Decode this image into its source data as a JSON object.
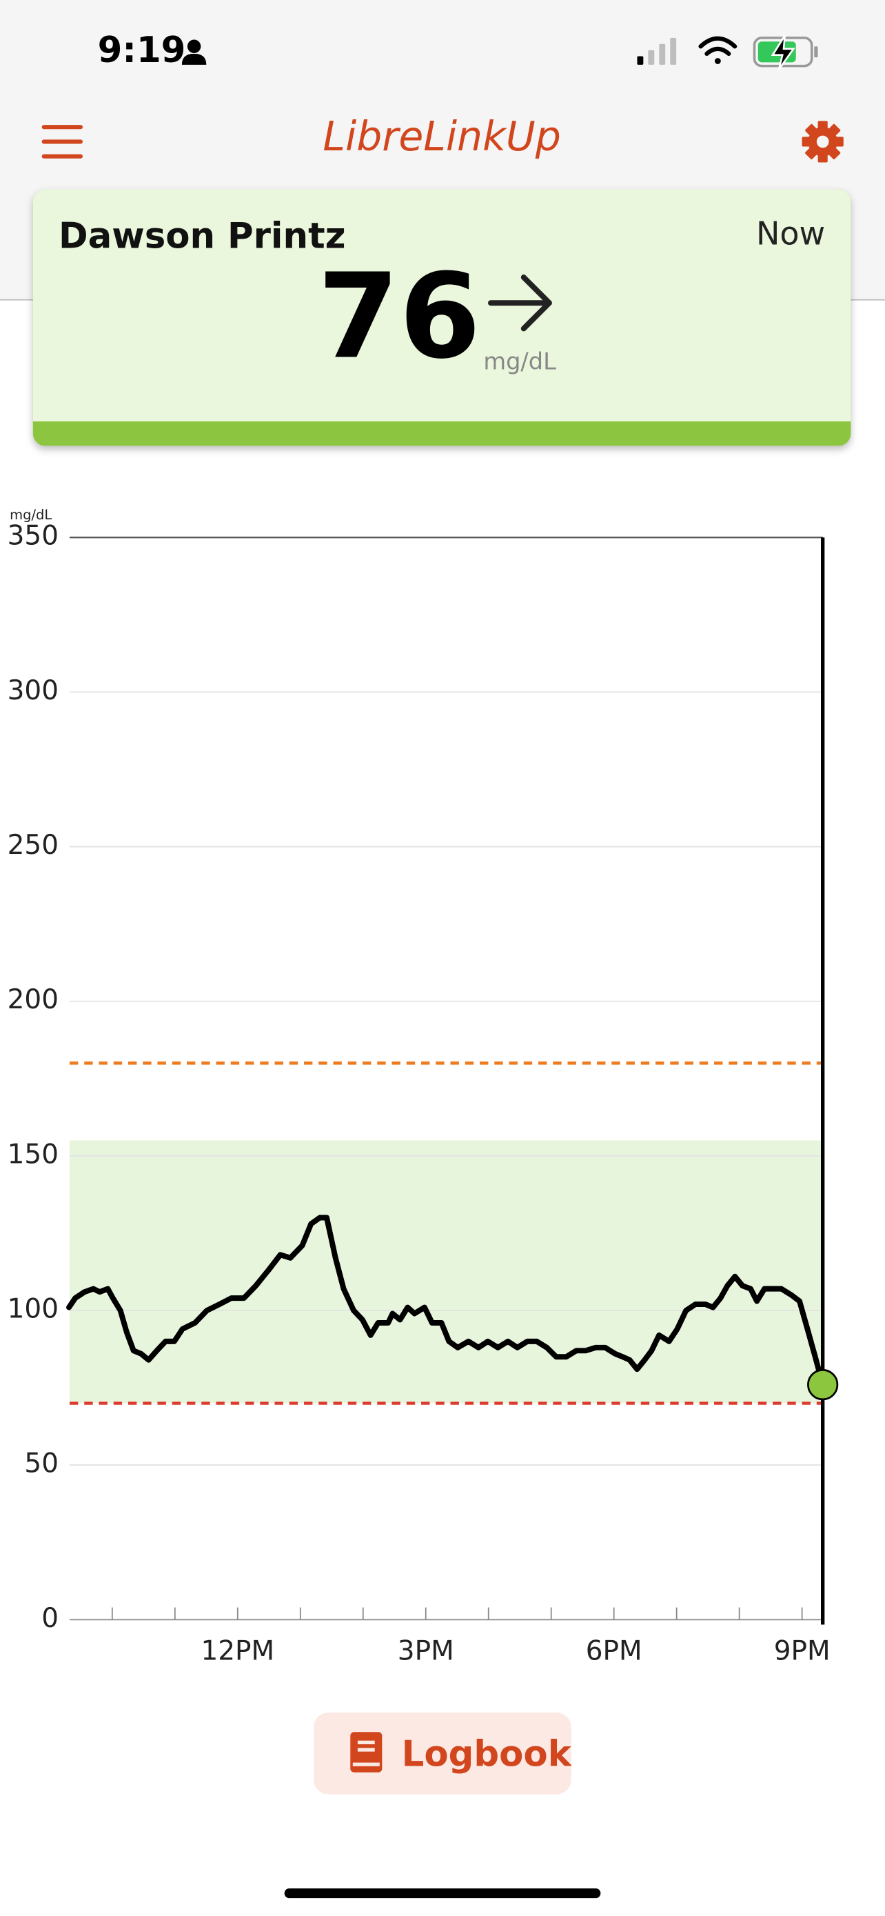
{
  "status_bar": {
    "time": "9:19"
  },
  "header": {
    "title": "LibreLinkUp"
  },
  "reading": {
    "name": "Dawson Printz",
    "timestamp": "Now",
    "value": 76,
    "unit": "mg/dL"
  },
  "chart_data": {
    "type": "line",
    "y_unit_label": "mg/dL",
    "x": [
      9.31,
      9.41,
      9.56,
      9.7,
      9.8,
      9.93,
      10.01,
      10.13,
      10.23,
      10.34,
      10.46,
      10.58,
      10.71,
      10.85,
      10.99,
      11.12,
      11.32,
      11.51,
      11.71,
      11.9,
      12.1,
      12.29,
      12.49,
      12.68,
      12.84,
      13.03,
      13.17,
      13.31,
      13.42,
      13.56,
      13.69,
      13.85,
      13.99,
      14.12,
      14.24,
      14.4,
      14.47,
      14.59,
      14.71,
      14.82,
      14.98,
      15.1,
      15.25,
      15.37,
      15.51,
      15.68,
      15.84,
      15.99,
      16.15,
      16.31,
      16.46,
      16.62,
      16.77,
      16.93,
      17.08,
      17.24,
      17.4,
      17.55,
      17.71,
      17.86,
      18.02,
      18.14,
      18.25,
      18.37,
      18.49,
      18.6,
      18.72,
      18.88,
      19.01,
      19.15,
      19.3,
      19.46,
      19.58,
      19.7,
      19.81,
      19.93,
      20.05,
      20.18,
      20.28,
      20.4,
      20.55,
      20.67,
      20.83,
      20.96,
      21.1,
      21.21,
      21.33
    ],
    "series": [
      {
        "color": "#000000",
        "values": [
          101,
          104,
          106,
          107,
          106,
          107,
          104,
          100,
          93,
          87,
          86,
          84,
          87,
          90,
          90,
          94,
          96,
          100,
          102,
          104,
          104,
          108,
          113,
          118,
          117,
          121,
          128,
          130,
          130,
          117,
          107,
          100,
          97,
          92,
          96,
          96,
          99,
          97,
          101,
          99,
          101,
          96,
          96,
          90,
          88,
          90,
          88,
          90,
          88,
          90,
          88,
          90,
          90,
          88,
          85,
          85,
          87,
          87,
          88,
          88,
          86,
          85,
          84,
          81,
          84,
          87,
          92,
          90,
          94,
          100,
          102,
          102,
          101,
          104,
          108,
          111,
          108,
          107,
          103,
          107,
          107,
          107,
          105,
          103,
          93,
          85,
          76
        ]
      }
    ],
    "xlim": [
      9.32,
      21.33
    ],
    "ylim": [
      0,
      350
    ],
    "yticks": [
      0,
      50,
      100,
      150,
      200,
      250,
      300,
      350
    ],
    "xticks": [
      {
        "value": 12,
        "label": "12PM"
      },
      {
        "value": 15,
        "label": "3PM"
      },
      {
        "value": 18,
        "label": "6PM"
      },
      {
        "value": 21,
        "label": "9PM"
      }
    ],
    "x_minor_ticks": [
      10,
      11,
      13,
      14,
      16,
      17,
      19,
      20
    ],
    "grid": true,
    "target_range": [
      70,
      155
    ],
    "target_color": "#e7f5dc",
    "high_threshold": 180,
    "high_color": "#ee7b1f",
    "low_threshold": 70,
    "low_color": "#dd3b2c",
    "current_color": "#8cc63f"
  },
  "logbook_button": {
    "label": "Logbook"
  }
}
